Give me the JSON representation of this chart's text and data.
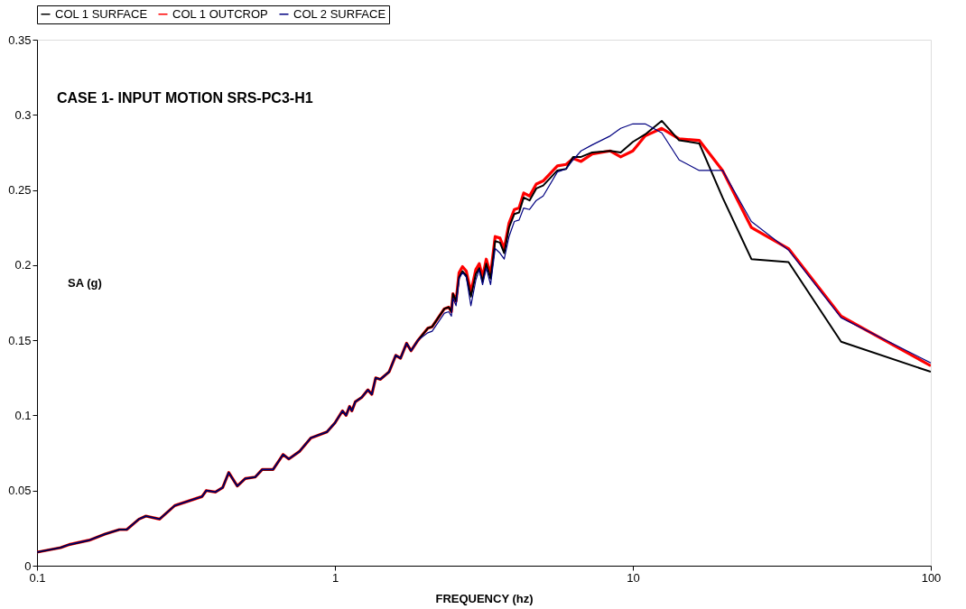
{
  "chart_data": {
    "type": "line",
    "title": "CASE 1- INPUT MOTION SRS-PC3-H1",
    "xlabel": "FREQUENCY (hz)",
    "ylabel": "SA (g)",
    "log": "x",
    "xlim": [
      0.1,
      100
    ],
    "xticks": [
      0.1,
      1,
      10,
      100
    ],
    "ylim": [
      0,
      0.35
    ],
    "yticks": [
      0,
      0.05,
      0.1,
      0.15,
      0.2,
      0.25,
      0.3,
      0.35
    ],
    "grid": false,
    "legend": "top",
    "marker": "none",
    "line_style": "solid",
    "x": [
      0.1,
      0.12,
      0.128,
      0.15,
      0.169,
      0.189,
      0.2,
      0.22,
      0.232,
      0.258,
      0.29,
      0.358,
      0.37,
      0.397,
      0.42,
      0.44,
      0.47,
      0.5,
      0.54,
      0.57,
      0.62,
      0.67,
      0.7,
      0.76,
      0.83,
      0.94,
      1.0,
      1.06,
      1.09,
      1.12,
      1.14,
      1.17,
      1.23,
      1.29,
      1.33,
      1.37,
      1.42,
      1.52,
      1.6,
      1.66,
      1.74,
      1.8,
      1.9,
      2.05,
      2.12,
      2.33,
      2.41,
      2.46,
      2.49,
      2.55,
      2.61,
      2.68,
      2.76,
      2.86,
      2.97,
      3.05,
      3.13,
      3.22,
      3.33,
      3.45,
      3.58,
      3.7,
      3.84,
      4.0,
      4.15,
      4.3,
      4.5,
      4.74,
      5.0,
      5.58,
      5.97,
      6.3,
      6.7,
      7.3,
      8.4,
      9.1,
      10,
      11,
      12.5,
      14.3,
      16.7,
      20,
      25,
      33.3,
      50,
      100
    ],
    "series": [
      {
        "name": "COL 1 SURFACE",
        "color": "#000000",
        "values": [
          0.009,
          0.012,
          0.014,
          0.017,
          0.021,
          0.024,
          0.024,
          0.031,
          0.033,
          0.031,
          0.04,
          0.046,
          0.05,
          0.049,
          0.052,
          0.062,
          0.053,
          0.058,
          0.059,
          0.064,
          0.064,
          0.074,
          0.071,
          0.076,
          0.085,
          0.089,
          0.095,
          0.103,
          0.1,
          0.106,
          0.103,
          0.109,
          0.112,
          0.117,
          0.114,
          0.125,
          0.124,
          0.129,
          0.14,
          0.138,
          0.148,
          0.143,
          0.15,
          0.158,
          0.159,
          0.171,
          0.172,
          0.169,
          0.181,
          0.176,
          0.192,
          0.196,
          0.193,
          0.179,
          0.194,
          0.198,
          0.189,
          0.201,
          0.191,
          0.216,
          0.215,
          0.208,
          0.225,
          0.234,
          0.235,
          0.245,
          0.243,
          0.251,
          0.253,
          0.263,
          0.264,
          0.272,
          0.272,
          0.275,
          0.276,
          0.275,
          0.282,
          0.287,
          0.296,
          0.283,
          0.281,
          0.245,
          0.204,
          0.202,
          0.149,
          0.129
        ]
      },
      {
        "name": "COL 1 OUTCROP",
        "color": "#ff0000",
        "values": [
          0.009,
          0.012,
          0.014,
          0.017,
          0.021,
          0.024,
          0.024,
          0.031,
          0.033,
          0.031,
          0.04,
          0.046,
          0.05,
          0.049,
          0.052,
          0.062,
          0.053,
          0.058,
          0.059,
          0.064,
          0.064,
          0.074,
          0.071,
          0.076,
          0.085,
          0.089,
          0.095,
          0.103,
          0.1,
          0.106,
          0.103,
          0.109,
          0.112,
          0.117,
          0.114,
          0.125,
          0.124,
          0.129,
          0.14,
          0.138,
          0.148,
          0.143,
          0.15,
          0.158,
          0.159,
          0.171,
          0.172,
          0.169,
          0.181,
          0.176,
          0.195,
          0.199,
          0.196,
          0.182,
          0.197,
          0.201,
          0.192,
          0.204,
          0.194,
          0.219,
          0.218,
          0.211,
          0.228,
          0.237,
          0.238,
          0.248,
          0.246,
          0.254,
          0.256,
          0.266,
          0.267,
          0.271,
          0.269,
          0.274,
          0.276,
          0.272,
          0.276,
          0.286,
          0.291,
          0.284,
          0.283,
          0.263,
          0.225,
          0.211,
          0.166,
          0.133
        ]
      },
      {
        "name": "COL 2 SURFACE",
        "color": "#000080",
        "values": [
          0.009,
          0.012,
          0.014,
          0.017,
          0.021,
          0.024,
          0.024,
          0.031,
          0.033,
          0.031,
          0.04,
          0.046,
          0.05,
          0.049,
          0.052,
          0.062,
          0.053,
          0.058,
          0.059,
          0.064,
          0.064,
          0.074,
          0.071,
          0.076,
          0.085,
          0.089,
          0.095,
          0.103,
          0.1,
          0.106,
          0.103,
          0.109,
          0.112,
          0.117,
          0.114,
          0.125,
          0.124,
          0.129,
          0.14,
          0.138,
          0.148,
          0.143,
          0.15,
          0.155,
          0.156,
          0.168,
          0.169,
          0.166,
          0.178,
          0.173,
          0.191,
          0.195,
          0.192,
          0.173,
          0.19,
          0.197,
          0.187,
          0.198,
          0.187,
          0.211,
          0.208,
          0.204,
          0.219,
          0.229,
          0.23,
          0.238,
          0.237,
          0.243,
          0.246,
          0.262,
          0.264,
          0.27,
          0.276,
          0.28,
          0.286,
          0.291,
          0.294,
          0.294,
          0.288,
          0.27,
          0.263,
          0.263,
          0.229,
          0.21,
          0.165,
          0.135
        ]
      }
    ]
  }
}
